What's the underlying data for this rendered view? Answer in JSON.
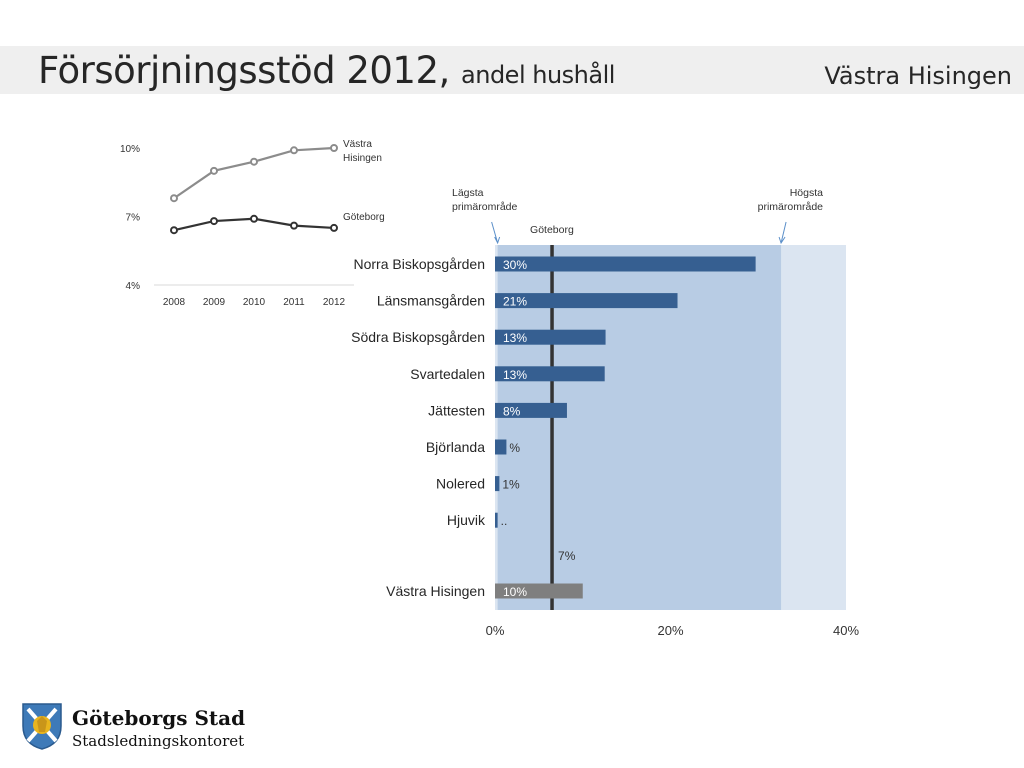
{
  "header": {
    "title_main": "Försörjningsstöd 2012,",
    "title_sub": "andel hushåll",
    "region": "Västra Hisingen"
  },
  "logo": {
    "line1": "Göteborgs Stad",
    "line2": "Stadsledningskontoret"
  },
  "chart_data": [
    {
      "type": "line",
      "x": [
        "2008",
        "2009",
        "2010",
        "2011",
        "2012"
      ],
      "y_ticks": [
        "4%",
        "7%",
        "10%"
      ],
      "ylim": [
        4,
        10
      ],
      "series": [
        {
          "name": "Västra Hisingen",
          "name_lines": [
            "Västra",
            "Hisingen"
          ],
          "values": [
            7.8,
            9.0,
            9.4,
            9.9,
            10.0
          ],
          "color": "#8c8c8c"
        },
        {
          "name": "Göteborg",
          "name_lines": [
            "Göteborg"
          ],
          "values": [
            6.4,
            6.8,
            6.9,
            6.6,
            6.5
          ],
          "color": "#333333"
        }
      ]
    },
    {
      "type": "bar",
      "orientation": "horizontal",
      "xlim": [
        0,
        40
      ],
      "x_ticks": [
        "0%",
        "20%",
        "40%"
      ],
      "categories": [
        "Norra Biskopsgården",
        "Länsmansgården",
        "Södra Biskopsgården",
        "Svartedalen",
        "Jättesten",
        "Björlanda",
        "Nolered",
        "Hjuvik"
      ],
      "values": [
        29.7,
        20.8,
        12.6,
        12.5,
        8.2,
        1.3,
        0.5,
        0.3
      ],
      "data_labels": [
        "30%",
        "21%",
        "13%",
        "13%",
        "8%",
        "%",
        "1%",
        ".."
      ],
      "bar_color": "#365f91",
      "total": {
        "category": "Västra Hisingen",
        "value": 10.0,
        "label": "10%",
        "color": "#7f7f7f"
      },
      "reference": {
        "name": "Göteborg",
        "value": 6.5,
        "label": "7%",
        "color": "#333333"
      },
      "range_band": {
        "low": 0.3,
        "high": 32.6,
        "low_label": [
          "Lägsta",
          "primärområde"
        ],
        "high_label": [
          "Högsta",
          "primärområde"
        ],
        "color": "#b8cce4",
        "outer_color": "#dbe5f1"
      }
    }
  ]
}
